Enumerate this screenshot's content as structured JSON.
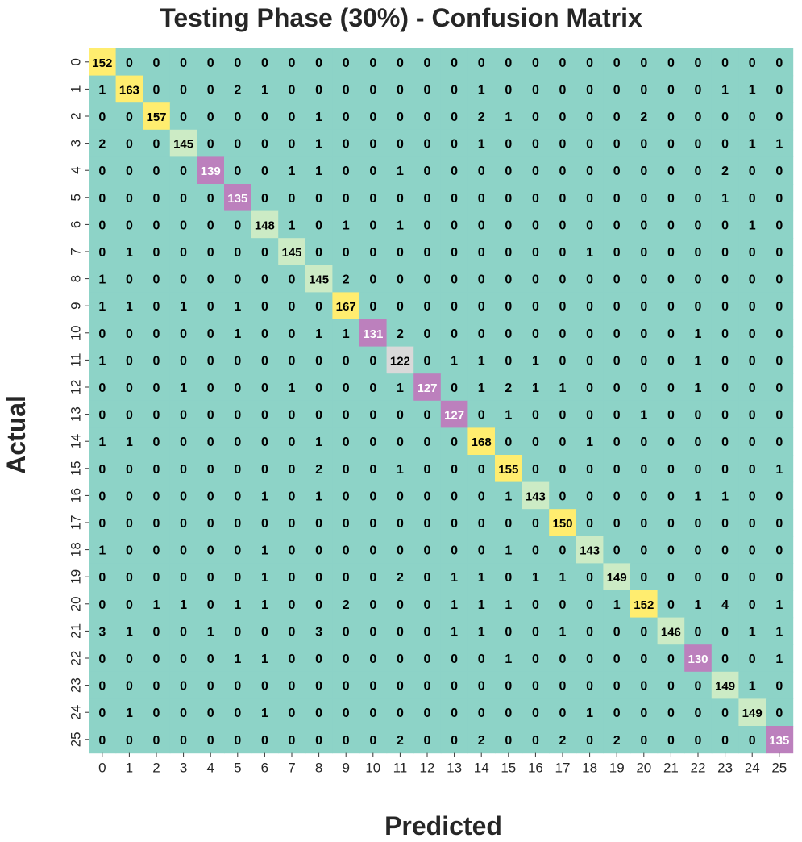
{
  "chart_data": {
    "type": "heatmap",
    "title": "Testing Phase (30%) - Confusion Matrix",
    "xlabel": "Predicted",
    "ylabel": "Actual",
    "x_tick_labels": [
      "0",
      "1",
      "2",
      "3",
      "4",
      "5",
      "6",
      "7",
      "8",
      "9",
      "10",
      "11",
      "12",
      "13",
      "14",
      "15",
      "16",
      "17",
      "18",
      "19",
      "20",
      "21",
      "22",
      "23",
      "24",
      "25"
    ],
    "y_tick_labels": [
      "0",
      "1",
      "2",
      "3",
      "4",
      "5",
      "6",
      "7",
      "8",
      "9",
      "10",
      "11",
      "12",
      "13",
      "14",
      "15",
      "16",
      "17",
      "18",
      "19",
      "20",
      "21",
      "22",
      "23",
      "24",
      "25"
    ],
    "colorbar": false,
    "colors": {
      "zero": "#8dd3c7",
      "high": "#ffed6f",
      "mid": "#bc80bd",
      "low": "#ccebc5",
      "alt": "#d9d9d9"
    },
    "matrix": [
      [
        152,
        0,
        0,
        0,
        0,
        0,
        0,
        0,
        0,
        0,
        0,
        0,
        0,
        0,
        0,
        0,
        0,
        0,
        0,
        0,
        0,
        0,
        0,
        0,
        0,
        0
      ],
      [
        1,
        163,
        0,
        0,
        0,
        2,
        1,
        0,
        0,
        0,
        0,
        0,
        0,
        0,
        1,
        0,
        0,
        0,
        0,
        0,
        0,
        0,
        0,
        1,
        1,
        0
      ],
      [
        0,
        0,
        157,
        0,
        0,
        0,
        0,
        0,
        1,
        0,
        0,
        0,
        0,
        0,
        2,
        1,
        0,
        0,
        0,
        0,
        2,
        0,
        0,
        0,
        0,
        0
      ],
      [
        2,
        0,
        0,
        145,
        0,
        0,
        0,
        0,
        1,
        0,
        0,
        0,
        0,
        0,
        1,
        0,
        0,
        0,
        0,
        0,
        0,
        0,
        0,
        0,
        1,
        1
      ],
      [
        0,
        0,
        0,
        0,
        139,
        0,
        0,
        1,
        1,
        0,
        0,
        1,
        0,
        0,
        0,
        0,
        0,
        0,
        0,
        0,
        0,
        0,
        0,
        2,
        0,
        0
      ],
      [
        0,
        0,
        0,
        0,
        0,
        135,
        0,
        0,
        0,
        0,
        0,
        0,
        0,
        0,
        0,
        0,
        0,
        0,
        0,
        0,
        0,
        0,
        0,
        1,
        0,
        0
      ],
      [
        0,
        0,
        0,
        0,
        0,
        0,
        148,
        1,
        0,
        1,
        0,
        1,
        0,
        0,
        0,
        0,
        0,
        0,
        0,
        0,
        0,
        0,
        0,
        0,
        1,
        0
      ],
      [
        0,
        1,
        0,
        0,
        0,
        0,
        0,
        145,
        0,
        0,
        0,
        0,
        0,
        0,
        0,
        0,
        0,
        0,
        1,
        0,
        0,
        0,
        0,
        0,
        0,
        0
      ],
      [
        1,
        0,
        0,
        0,
        0,
        0,
        0,
        0,
        145,
        2,
        0,
        0,
        0,
        0,
        0,
        0,
        0,
        0,
        0,
        0,
        0,
        0,
        0,
        0,
        0,
        0
      ],
      [
        1,
        1,
        0,
        1,
        0,
        1,
        0,
        0,
        0,
        167,
        0,
        0,
        0,
        0,
        0,
        0,
        0,
        0,
        0,
        0,
        0,
        0,
        0,
        0,
        0,
        0
      ],
      [
        0,
        0,
        0,
        0,
        0,
        1,
        0,
        0,
        1,
        1,
        131,
        2,
        0,
        0,
        0,
        0,
        0,
        0,
        0,
        0,
        0,
        0,
        1,
        0,
        0,
        0
      ],
      [
        1,
        0,
        0,
        0,
        0,
        0,
        0,
        0,
        0,
        0,
        0,
        122,
        0,
        1,
        1,
        0,
        1,
        0,
        0,
        0,
        0,
        0,
        1,
        0,
        0,
        0
      ],
      [
        0,
        0,
        0,
        1,
        0,
        0,
        0,
        1,
        0,
        0,
        0,
        1,
        127,
        0,
        1,
        2,
        1,
        1,
        0,
        0,
        0,
        0,
        1,
        0,
        0,
        0
      ],
      [
        0,
        0,
        0,
        0,
        0,
        0,
        0,
        0,
        0,
        0,
        0,
        0,
        0,
        127,
        0,
        1,
        0,
        0,
        0,
        0,
        1,
        0,
        0,
        0,
        0,
        0
      ],
      [
        1,
        1,
        0,
        0,
        0,
        0,
        0,
        0,
        1,
        0,
        0,
        0,
        0,
        0,
        168,
        0,
        0,
        0,
        1,
        0,
        0,
        0,
        0,
        0,
        0,
        0
      ],
      [
        0,
        0,
        0,
        0,
        0,
        0,
        0,
        0,
        2,
        0,
        0,
        1,
        0,
        0,
        0,
        155,
        0,
        0,
        0,
        0,
        0,
        0,
        0,
        0,
        0,
        1
      ],
      [
        0,
        0,
        0,
        0,
        0,
        0,
        1,
        0,
        1,
        0,
        0,
        0,
        0,
        0,
        0,
        1,
        143,
        0,
        0,
        0,
        0,
        0,
        1,
        1,
        0,
        0
      ],
      [
        0,
        0,
        0,
        0,
        0,
        0,
        0,
        0,
        0,
        0,
        0,
        0,
        0,
        0,
        0,
        0,
        0,
        150,
        0,
        0,
        0,
        0,
        0,
        0,
        0,
        0
      ],
      [
        1,
        0,
        0,
        0,
        0,
        0,
        1,
        0,
        0,
        0,
        0,
        0,
        0,
        0,
        0,
        1,
        0,
        0,
        143,
        0,
        0,
        0,
        0,
        0,
        0,
        0
      ],
      [
        0,
        0,
        0,
        0,
        0,
        0,
        1,
        0,
        0,
        0,
        0,
        2,
        0,
        1,
        1,
        0,
        1,
        1,
        0,
        149,
        0,
        0,
        0,
        0,
        0,
        0
      ],
      [
        0,
        0,
        1,
        1,
        0,
        1,
        1,
        0,
        0,
        2,
        0,
        0,
        0,
        1,
        1,
        1,
        0,
        0,
        0,
        1,
        152,
        0,
        1,
        4,
        0,
        1
      ],
      [
        3,
        1,
        0,
        0,
        1,
        0,
        0,
        0,
        3,
        0,
        0,
        0,
        0,
        1,
        1,
        0,
        0,
        1,
        0,
        0,
        0,
        146,
        0,
        0,
        1,
        1
      ],
      [
        0,
        0,
        0,
        0,
        0,
        1,
        1,
        0,
        0,
        0,
        0,
        0,
        0,
        0,
        0,
        1,
        0,
        0,
        0,
        0,
        0,
        0,
        130,
        0,
        0,
        1
      ],
      [
        0,
        0,
        0,
        0,
        0,
        0,
        0,
        0,
        0,
        0,
        0,
        0,
        0,
        0,
        0,
        0,
        0,
        0,
        0,
        0,
        0,
        0,
        0,
        149,
        1,
        0
      ],
      [
        0,
        1,
        0,
        0,
        0,
        0,
        1,
        0,
        0,
        0,
        0,
        0,
        0,
        0,
        0,
        0,
        0,
        0,
        1,
        0,
        0,
        0,
        0,
        0,
        149,
        0
      ],
      [
        0,
        0,
        0,
        0,
        0,
        0,
        0,
        0,
        0,
        0,
        0,
        2,
        0,
        0,
        2,
        0,
        0,
        2,
        0,
        2,
        0,
        0,
        0,
        0,
        0,
        135
      ]
    ]
  }
}
